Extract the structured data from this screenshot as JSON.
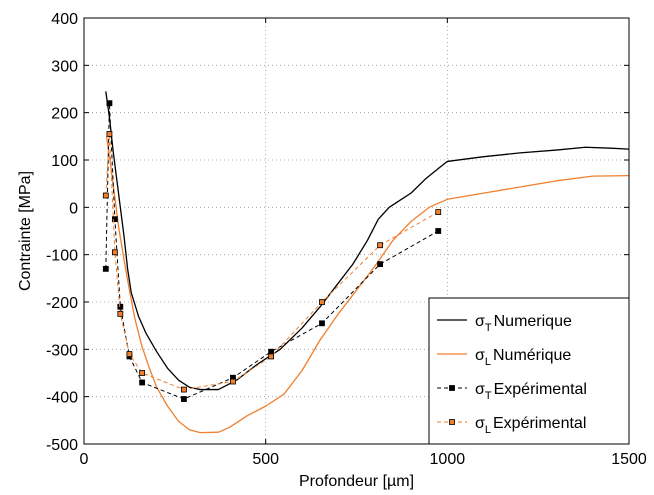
{
  "chart_data": {
    "type": "line",
    "title": "",
    "xlabel": "Profondeur [µm]",
    "ylabel": "Contrainte [MPa]",
    "xlim": [
      0,
      1500
    ],
    "ylim": [
      -500,
      400
    ],
    "x_ticks": [
      0,
      500,
      1000,
      1500
    ],
    "y_ticks": [
      -500,
      -400,
      -300,
      -200,
      -100,
      0,
      100,
      200,
      300,
      400
    ],
    "grid": true,
    "legend_position": "bottom-right",
    "series": [
      {
        "name": "σT Numerique",
        "legend_symbol": "σ",
        "legend_subscript": "T",
        "legend_label": "Numerique",
        "color": "#000000",
        "style": "solid",
        "marker": "none",
        "points": [
          [
            60,
            245
          ],
          [
            70,
            190
          ],
          [
            80,
            120
          ],
          [
            90,
            60
          ],
          [
            100,
            0
          ],
          [
            110,
            -60
          ],
          [
            120,
            -130
          ],
          [
            130,
            -180
          ],
          [
            150,
            -230
          ],
          [
            170,
            -265
          ],
          [
            200,
            -305
          ],
          [
            230,
            -340
          ],
          [
            260,
            -365
          ],
          [
            290,
            -380
          ],
          [
            320,
            -385
          ],
          [
            370,
            -385
          ],
          [
            420,
            -365
          ],
          [
            480,
            -330
          ],
          [
            540,
            -300
          ],
          [
            600,
            -255
          ],
          [
            650,
            -210
          ],
          [
            700,
            -160
          ],
          [
            740,
            -120
          ],
          [
            780,
            -70
          ],
          [
            810,
            -25
          ],
          [
            840,
            0
          ],
          [
            870,
            15
          ],
          [
            900,
            30
          ],
          [
            940,
            60
          ],
          [
            980,
            85
          ],
          [
            1000,
            97
          ],
          [
            1100,
            107
          ],
          [
            1200,
            115
          ],
          [
            1300,
            121
          ],
          [
            1380,
            127
          ],
          [
            1450,
            125
          ],
          [
            1500,
            123
          ]
        ]
      },
      {
        "name": "σL Numérique",
        "legend_symbol": "σ",
        "legend_subscript": "L",
        "legend_label": "Numérique",
        "color": "#f07f2e",
        "style": "solid",
        "marker": "none",
        "points": [
          [
            62,
            150
          ],
          [
            75,
            80
          ],
          [
            85,
            20
          ],
          [
            95,
            -40
          ],
          [
            110,
            -110
          ],
          [
            125,
            -175
          ],
          [
            140,
            -235
          ],
          [
            160,
            -295
          ],
          [
            180,
            -340
          ],
          [
            200,
            -380
          ],
          [
            230,
            -420
          ],
          [
            260,
            -452
          ],
          [
            290,
            -470
          ],
          [
            320,
            -476
          ],
          [
            370,
            -475
          ],
          [
            400,
            -465
          ],
          [
            450,
            -440
          ],
          [
            500,
            -420
          ],
          [
            550,
            -395
          ],
          [
            600,
            -345
          ],
          [
            650,
            -280
          ],
          [
            700,
            -225
          ],
          [
            750,
            -175
          ],
          [
            800,
            -125
          ],
          [
            850,
            -70
          ],
          [
            900,
            -30
          ],
          [
            950,
            0
          ],
          [
            1000,
            17
          ],
          [
            1100,
            30
          ],
          [
            1200,
            43
          ],
          [
            1300,
            56
          ],
          [
            1400,
            66
          ],
          [
            1500,
            67
          ]
        ]
      },
      {
        "name": "σT Expérimental",
        "legend_symbol": "σ",
        "legend_subscript": "T",
        "legend_label": "Expérimental",
        "color": "#000000",
        "style": "dashed",
        "marker": "square",
        "marker_fill": "#000000",
        "points": [
          [
            60,
            -130
          ],
          [
            70,
            220
          ],
          [
            85,
            -25
          ],
          [
            100,
            -210
          ],
          [
            125,
            -315
          ],
          [
            160,
            -370
          ],
          [
            275,
            -405
          ],
          [
            410,
            -360
          ],
          [
            515,
            -305
          ],
          [
            655,
            -245
          ],
          [
            815,
            -120
          ],
          [
            975,
            -50
          ]
        ]
      },
      {
        "name": "σL Expérimental",
        "legend_symbol": "σ",
        "legend_subscript": "L",
        "legend_label": "Expérimental",
        "color": "#f07f2e",
        "style": "dashed",
        "marker": "square",
        "marker_fill": "#f07f2e",
        "marker_edge": "#000000",
        "points": [
          [
            60,
            25
          ],
          [
            70,
            155
          ],
          [
            85,
            -95
          ],
          [
            100,
            -225
          ],
          [
            125,
            -310
          ],
          [
            160,
            -350
          ],
          [
            275,
            -385
          ],
          [
            410,
            -368
          ],
          [
            515,
            -315
          ],
          [
            655,
            -200
          ],
          [
            815,
            -80
          ],
          [
            975,
            -10
          ]
        ]
      }
    ]
  }
}
